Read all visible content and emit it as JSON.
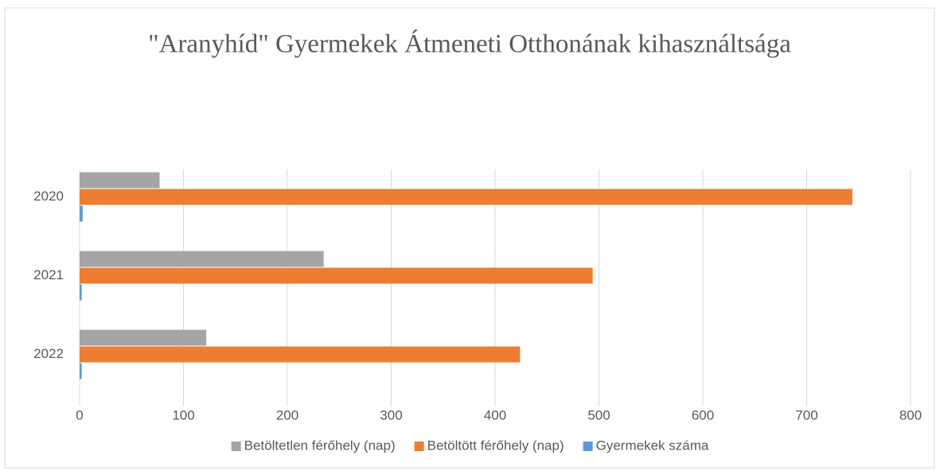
{
  "chart_data": {
    "type": "hbar",
    "title": "\"Aranyhíd\" Gyermekek Átmeneti Otthonának kihasználtsága",
    "categories": [
      "2020",
      "2021",
      "2022"
    ],
    "series": [
      {
        "name": "Betöltetlen férőhely (nap)",
        "color": "#a5a5a5",
        "values": [
          77,
          235,
          122
        ]
      },
      {
        "name": "Betöltött férőhely (nap)",
        "color": "#ed7d31",
        "values": [
          744,
          494,
          424
        ]
      },
      {
        "name": "Gyermekek száma",
        "color": "#5b9bd5",
        "values": [
          3,
          2,
          2
        ]
      }
    ],
    "xlim": [
      0,
      800
    ],
    "xticks": [
      0,
      100,
      200,
      300,
      400,
      500,
      600,
      700,
      800
    ],
    "grid": true,
    "legend": "bottom"
  }
}
